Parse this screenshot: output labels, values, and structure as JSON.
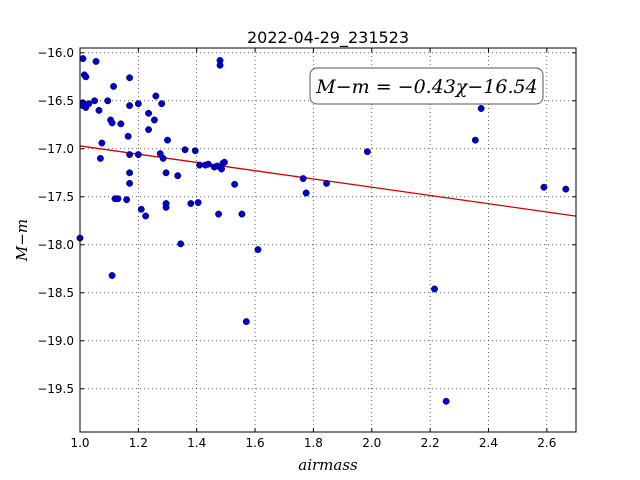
{
  "chart_data": {
    "type": "scatter",
    "title": "2022-04-29_231523",
    "xlabel": "airmass",
    "ylabel": "M−m",
    "xlim": [
      1.0,
      2.7
    ],
    "ylim": [
      -19.95,
      -15.95
    ],
    "y_inverted": true,
    "grid": true,
    "x_ticks": [
      "1.0",
      "1.2",
      "1.4",
      "1.6",
      "1.8",
      "2.0",
      "2.2",
      "2.4",
      "2.6"
    ],
    "x_tick_values": [
      1.0,
      1.2,
      1.4,
      1.6,
      1.8,
      2.0,
      2.2,
      2.4,
      2.6
    ],
    "y_ticks": [
      "−16.0",
      "−16.5",
      "−17.0",
      "−17.5",
      "−18.0",
      "−18.5",
      "−19.0",
      "−19.5"
    ],
    "y_tick_values": [
      -16.0,
      -16.5,
      -17.0,
      -17.5,
      -18.0,
      -18.5,
      -19.0,
      -19.5
    ],
    "annotation": "M−m = −0.43χ−16.54",
    "annotation_location": "top-right",
    "series": [
      {
        "color": "#0000cc",
        "points": [
          [
            1.0,
            -17.93
          ],
          [
            1.01,
            -16.52
          ],
          [
            1.01,
            -16.55
          ],
          [
            1.01,
            -16.06
          ],
          [
            1.015,
            -16.23
          ],
          [
            1.02,
            -16.25
          ],
          [
            1.02,
            -16.57
          ],
          [
            1.03,
            -16.53
          ],
          [
            1.05,
            -16.5
          ],
          [
            1.055,
            -16.09
          ],
          [
            1.065,
            -16.6
          ],
          [
            1.07,
            -17.1
          ],
          [
            1.075,
            -16.94
          ],
          [
            1.095,
            -16.5
          ],
          [
            1.105,
            -16.7
          ],
          [
            1.11,
            -16.73
          ],
          [
            1.11,
            -18.32
          ],
          [
            1.115,
            -16.35
          ],
          [
            1.12,
            -17.52
          ],
          [
            1.13,
            -17.52
          ],
          [
            1.14,
            -16.74
          ],
          [
            1.16,
            -17.53
          ],
          [
            1.165,
            -16.87
          ],
          [
            1.17,
            -16.55
          ],
          [
            1.17,
            -16.26
          ],
          [
            1.17,
            -17.06
          ],
          [
            1.17,
            -17.25
          ],
          [
            1.17,
            -17.36
          ],
          [
            1.2,
            -16.53
          ],
          [
            1.2,
            -17.06
          ],
          [
            1.21,
            -17.63
          ],
          [
            1.225,
            -17.7
          ],
          [
            1.235,
            -16.8
          ],
          [
            1.235,
            -16.63
          ],
          [
            1.255,
            -16.7
          ],
          [
            1.26,
            -16.45
          ],
          [
            1.275,
            -17.05
          ],
          [
            1.28,
            -16.53
          ],
          [
            1.285,
            -17.1
          ],
          [
            1.295,
            -17.57
          ],
          [
            1.295,
            -17.61
          ],
          [
            1.295,
            -17.25
          ],
          [
            1.3,
            -16.91
          ],
          [
            1.335,
            -17.28
          ],
          [
            1.345,
            -17.99
          ],
          [
            1.36,
            -17.01
          ],
          [
            1.38,
            -17.57
          ],
          [
            1.395,
            -17.02
          ],
          [
            1.405,
            -17.56
          ],
          [
            1.41,
            -17.17
          ],
          [
            1.43,
            -17.17
          ],
          [
            1.44,
            -17.16
          ],
          [
            1.46,
            -17.19
          ],
          [
            1.47,
            -17.18
          ],
          [
            1.475,
            -17.68
          ],
          [
            1.48,
            -16.08
          ],
          [
            1.48,
            -16.13
          ],
          [
            1.485,
            -17.21
          ],
          [
            1.49,
            -17.15
          ],
          [
            1.495,
            -17.14
          ],
          [
            1.53,
            -17.37
          ],
          [
            1.555,
            -17.68
          ],
          [
            1.57,
            -18.8
          ],
          [
            1.61,
            -18.05
          ],
          [
            1.765,
            -17.31
          ],
          [
            1.775,
            -17.46
          ],
          [
            1.845,
            -17.36
          ],
          [
            1.985,
            -17.03
          ],
          [
            2.215,
            -18.46
          ],
          [
            2.255,
            -19.63
          ],
          [
            2.355,
            -16.91
          ],
          [
            2.375,
            -16.58
          ],
          [
            2.59,
            -17.4
          ],
          [
            2.665,
            -17.42
          ]
        ]
      }
    ],
    "fit": {
      "slope": -0.43,
      "intercept": -16.54,
      "color": "#cc0000"
    }
  }
}
